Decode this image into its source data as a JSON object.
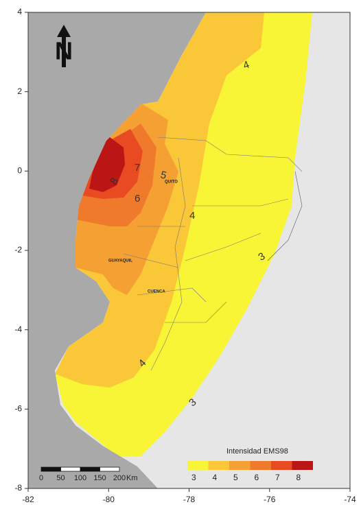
{
  "map": {
    "xlim": [
      -82,
      -74
    ],
    "ylim": [
      -8,
      4
    ],
    "xticks": [
      -82,
      -80,
      -78,
      -76,
      -74
    ],
    "yticks": [
      -8,
      -6,
      -4,
      -2,
      0,
      2,
      4
    ],
    "north": "N",
    "legend": {
      "title": "Intensidad EMS98",
      "levels": [
        3,
        4,
        5,
        6,
        7,
        8
      ],
      "colors": [
        "#f7f536",
        "#f9c737",
        "#f5a032",
        "#f07a2c",
        "#e84a22",
        "#bb1515"
      ]
    },
    "isoseismal_labels": [
      "4",
      "7",
      "5",
      "8",
      "6",
      "4",
      "3",
      "4",
      "3"
    ],
    "cities": [
      "QUITO",
      "GUAYAQUIL",
      "CUENCA"
    ],
    "scale_bar": {
      "labels": [
        0,
        50,
        100,
        150,
        200
      ],
      "unit": "Km"
    }
  }
}
